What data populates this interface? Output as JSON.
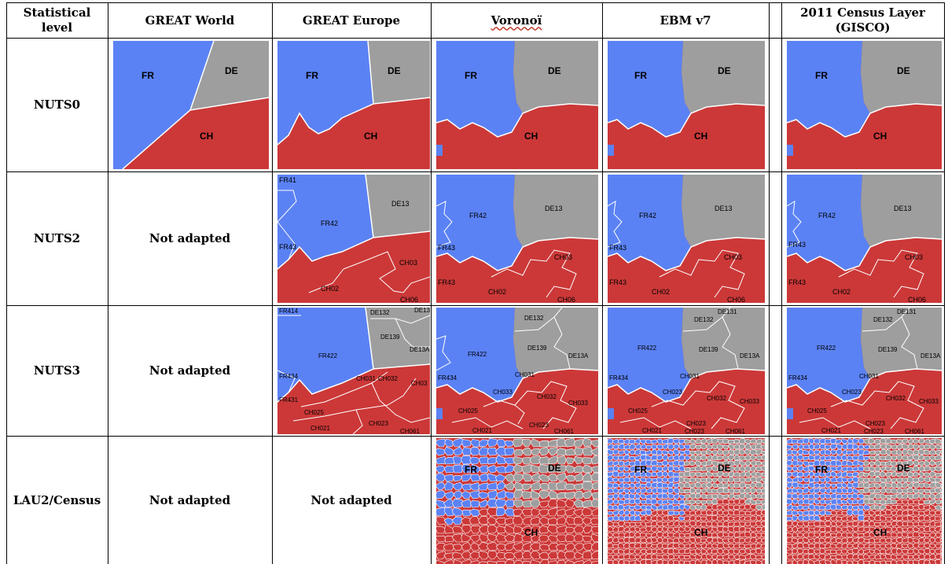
{
  "headers": {
    "level": "Statistical level",
    "great_world": "GREAT World",
    "great_europe": "GREAT Europe",
    "voronoi": "Voronoï",
    "ebm": "EBM v7",
    "census": "2011 Census Layer (GISCO)"
  },
  "rows": {
    "nuts0": "NUTS0",
    "nuts2": "NUTS2",
    "nuts3": "NUTS3",
    "lau2": "LAU2/Census"
  },
  "not_adapted": "Not adapted",
  "labels": {
    "fr": "FR",
    "de": "DE",
    "ch": "CH",
    "fr41": "FR41",
    "fr42": "FR42",
    "fr43": "FR43",
    "de13": "DE13",
    "ch02": "CH02",
    "ch03": "CH03",
    "ch06": "CH06",
    "fr414": "FR414",
    "fr422": "FR422",
    "fr434": "FR434",
    "fr431": "FR431",
    "de131": "DE131",
    "de132": "DE132",
    "de139": "DE139",
    "de13a": "DE13A",
    "ch031": "CH031",
    "ch032": "CH032",
    "ch033": "CH033",
    "ch023": "CH023",
    "ch025": "CH025",
    "ch021": "CH021",
    "ch061": "CH061"
  },
  "colors": {
    "france": "#5b82f4",
    "germany": "#9e9e9e",
    "switzerland": "#cc3838",
    "border": "#ffffff"
  }
}
